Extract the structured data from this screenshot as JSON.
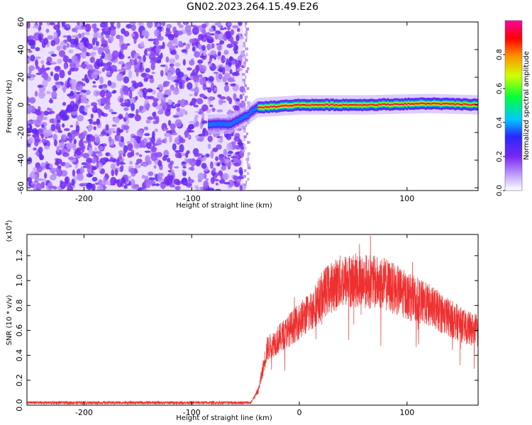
{
  "title": "GN02.2023.264.15.49.E26",
  "chart_data": [
    {
      "type": "heatmap",
      "xlabel": "Height of straight line (km)",
      "ylabel": "Frequency (Hz)",
      "xlim": [
        -253,
        166
      ],
      "ylim": [
        -62,
        60
      ],
      "xticks": [
        -200,
        -100,
        0,
        100
      ],
      "yticks": [
        -60,
        -40,
        -20,
        0,
        20,
        40,
        60
      ],
      "colorbar": {
        "label": "Normalized spectral amplitude",
        "range": [
          0,
          1
        ],
        "ticks": [
          "0.0",
          "0.2",
          "0.4",
          "0.6",
          "0.8"
        ],
        "colormap": "rainbow (white-purple-blue-cyan-green-yellow-red-magenta)"
      },
      "features": {
        "noise_region_x": [
          -253,
          -52
        ],
        "signal_track": [
          {
            "x": -85,
            "freq": -14
          },
          {
            "x": -65,
            "freq": -14
          },
          {
            "x": -50,
            "freq": -8
          },
          {
            "x": -40,
            "freq": -2
          },
          {
            "x": 0,
            "freq": 0
          },
          {
            "x": 60,
            "freq": 0
          },
          {
            "x": 120,
            "freq": 1
          },
          {
            "x": 166,
            "freq": 0
          }
        ]
      }
    },
    {
      "type": "line",
      "xlabel": "Height of straight line (km)",
      "ylabel": "SNR (10 * v/v)",
      "y_multiplier": "(x10^4)",
      "xlim": [
        -253,
        166
      ],
      "ylim": [
        0,
        1.37
      ],
      "xticks": [
        -200,
        -100,
        0,
        100
      ],
      "yticks": [
        "0.0",
        "0.2",
        "0.4",
        "0.6",
        "0.8",
        "1.0",
        "1.2"
      ],
      "series_color": "#EE3030",
      "envelope": [
        {
          "x": -253,
          "y": 0.02
        },
        {
          "x": -45,
          "y": 0.02
        },
        {
          "x": -38,
          "y": 0.12
        },
        {
          "x": -30,
          "y": 0.45
        },
        {
          "x": -10,
          "y": 0.6
        },
        {
          "x": 10,
          "y": 0.75
        },
        {
          "x": 25,
          "y": 0.92
        },
        {
          "x": 40,
          "y": 1.0
        },
        {
          "x": 60,
          "y": 1.0
        },
        {
          "x": 80,
          "y": 0.97
        },
        {
          "x": 100,
          "y": 0.88
        },
        {
          "x": 120,
          "y": 0.8
        },
        {
          "x": 140,
          "y": 0.7
        },
        {
          "x": 155,
          "y": 0.62
        },
        {
          "x": 166,
          "y": 0.6
        }
      ]
    }
  ]
}
